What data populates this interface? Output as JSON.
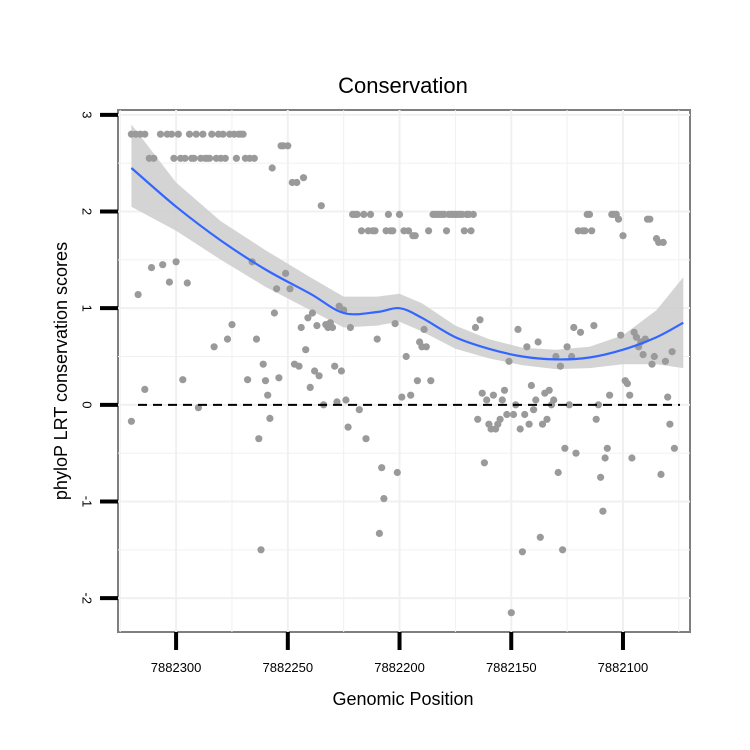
{
  "chart_data": {
    "type": "scatter",
    "title": "Conservation",
    "xlabel": "Genomic Position",
    "ylabel": "phyloP LRT conservation scores",
    "x_reversed": true,
    "xlim": [
      7882326,
      7882070
    ],
    "ylim": [
      -2.35,
      3.05
    ],
    "x_ticks": [
      7882300,
      7882250,
      7882200,
      7882150,
      7882100
    ],
    "x_tick_labels": [
      "7882300",
      "7882250",
      "7882200",
      "7882150",
      "7882100"
    ],
    "y_ticks": [
      3,
      2,
      1,
      0,
      -1,
      -2
    ],
    "y_tick_labels": [
      "3",
      "2",
      "1",
      "0",
      "-1",
      "-2"
    ],
    "reference_line": {
      "y": 0,
      "style": "dashed"
    },
    "colors": {
      "points": "#9a9a9a",
      "smooth": "#3366ff",
      "band": "#cccccc",
      "frame": "#7f7f7f",
      "grid": "#f0f0f0"
    },
    "points": [
      [
        7882320,
        -0.17
      ],
      [
        7882320,
        2.8
      ],
      [
        7882318,
        2.8
      ],
      [
        7882316,
        2.8
      ],
      [
        7882314,
        2.8
      ],
      [
        7882317,
        1.14
      ],
      [
        7882314,
        0.16
      ],
      [
        7882312,
        2.55
      ],
      [
        7882311,
        1.42
      ],
      [
        7882310,
        2.55
      ],
      [
        7882307,
        2.8
      ],
      [
        7882306,
        1.45
      ],
      [
        7882304,
        2.8
      ],
      [
        7882303,
        1.27
      ],
      [
        7882302,
        2.8
      ],
      [
        7882301,
        2.55
      ],
      [
        7882300,
        1.48
      ],
      [
        7882299,
        2.8
      ],
      [
        7882298,
        2.55
      ],
      [
        7882297,
        0.26
      ],
      [
        7882296,
        2.55
      ],
      [
        7882295,
        1.26
      ],
      [
        7882294,
        2.8
      ],
      [
        7882293,
        2.55
      ],
      [
        7882292,
        2.55
      ],
      [
        7882291,
        2.8
      ],
      [
        7882290,
        -0.03
      ],
      [
        7882289,
        2.55
      ],
      [
        7882288,
        2.8
      ],
      [
        7882287,
        2.55
      ],
      [
        7882286,
        2.55
      ],
      [
        7882285,
        2.55
      ],
      [
        7882284,
        2.8
      ],
      [
        7882283,
        0.6
      ],
      [
        7882282,
        2.55
      ],
      [
        7882281,
        2.8
      ],
      [
        7882280,
        2.55
      ],
      [
        7882279,
        2.8
      ],
      [
        7882278,
        2.55
      ],
      [
        7882277,
        0.68
      ],
      [
        7882276,
        2.8
      ],
      [
        7882275,
        0.83
      ],
      [
        7882274,
        2.8
      ],
      [
        7882273,
        2.55
      ],
      [
        7882272,
        2.8
      ],
      [
        7882271,
        2.8
      ],
      [
        7882270,
        2.8
      ],
      [
        7882269,
        2.55
      ],
      [
        7882268,
        0.26
      ],
      [
        7882267,
        2.55
      ],
      [
        7882266,
        1.48
      ],
      [
        7882265,
        2.55
      ],
      [
        7882264,
        0.68
      ],
      [
        7882263,
        -0.35
      ],
      [
        7882262,
        -1.5
      ],
      [
        7882261,
        0.42
      ],
      [
        7882260,
        0.25
      ],
      [
        7882259,
        0.1
      ],
      [
        7882258,
        -0.14
      ],
      [
        7882257,
        2.45
      ],
      [
        7882256,
        0.95
      ],
      [
        7882255,
        1.2
      ],
      [
        7882254,
        0.28
      ],
      [
        7882253,
        2.68
      ],
      [
        7882252,
        2.68
      ],
      [
        7882251,
        1.36
      ],
      [
        7882250,
        2.68
      ],
      [
        7882249,
        1.2
      ],
      [
        7882248,
        2.3
      ],
      [
        7882247,
        0.42
      ],
      [
        7882246,
        2.3
      ],
      [
        7882245,
        0.4
      ],
      [
        7882244,
        0.8
      ],
      [
        7882243,
        2.35
      ],
      [
        7882242,
        0.57
      ],
      [
        7882241,
        0.9
      ],
      [
        7882240,
        0.18
      ],
      [
        7882239,
        0.95
      ],
      [
        7882238,
        0.35
      ],
      [
        7882237,
        0.82
      ],
      [
        7882236,
        0.3
      ],
      [
        7882235,
        2.06
      ],
      [
        7882234,
        0.0
      ],
      [
        7882233,
        0.83
      ],
      [
        7882232,
        0.8
      ],
      [
        7882231,
        0.85
      ],
      [
        7882230,
        0.8
      ],
      [
        7882229,
        0.4
      ],
      [
        7882228,
        0.03
      ],
      [
        7882227,
        1.02
      ],
      [
        7882226,
        0.35
      ],
      [
        7882225,
        0.98
      ],
      [
        7882224,
        0.05
      ],
      [
        7882223,
        -0.23
      ],
      [
        7882222,
        0.8
      ],
      [
        7882221,
        1.97
      ],
      [
        7882220,
        1.97
      ],
      [
        7882219,
        1.97
      ],
      [
        7882218,
        -0.05
      ],
      [
        7882217,
        1.8
      ],
      [
        7882216,
        1.97
      ],
      [
        7882215,
        -0.35
      ],
      [
        7882214,
        1.8
      ],
      [
        7882213,
        1.97
      ],
      [
        7882212,
        1.8
      ],
      [
        7882211,
        1.8
      ],
      [
        7882210,
        0.68
      ],
      [
        7882209,
        -1.33
      ],
      [
        7882208,
        -0.65
      ],
      [
        7882207,
        -0.97
      ],
      [
        7882206,
        1.8
      ],
      [
        7882205,
        1.97
      ],
      [
        7882204,
        1.8
      ],
      [
        7882203,
        1.8
      ],
      [
        7882202,
        0.84
      ],
      [
        7882201,
        -0.7
      ],
      [
        7882200,
        1.97
      ],
      [
        7882199,
        0.08
      ],
      [
        7882198,
        1.8
      ],
      [
        7882197,
        0.5
      ],
      [
        7882196,
        1.8
      ],
      [
        7882195,
        0.1
      ],
      [
        7882194,
        1.75
      ],
      [
        7882193,
        1.75
      ],
      [
        7882192,
        0.25
      ],
      [
        7882191,
        0.65
      ],
      [
        7882190,
        0.6
      ],
      [
        7882189,
        0.78
      ],
      [
        7882188,
        0.6
      ],
      [
        7882187,
        1.8
      ],
      [
        7882186,
        0.25
      ],
      [
        7882185,
        1.97
      ],
      [
        7882184,
        1.97
      ],
      [
        7882183,
        1.97
      ],
      [
        7882182,
        1.97
      ],
      [
        7882181,
        1.97
      ],
      [
        7882180,
        1.97
      ],
      [
        7882179,
        1.8
      ],
      [
        7882178,
        1.97
      ],
      [
        7882177,
        1.97
      ],
      [
        7882176,
        1.97
      ],
      [
        7882175,
        1.97
      ],
      [
        7882174,
        1.97
      ],
      [
        7882173,
        1.97
      ],
      [
        7882172,
        1.97
      ],
      [
        7882171,
        1.8
      ],
      [
        7882170,
        1.97
      ],
      [
        7882169,
        1.97
      ],
      [
        7882168,
        1.8
      ],
      [
        7882167,
        1.97
      ],
      [
        7882166,
        0.8
      ],
      [
        7882165,
        -0.15
      ],
      [
        7882164,
        0.88
      ],
      [
        7882163,
        0.12
      ],
      [
        7882162,
        -0.6
      ],
      [
        7882161,
        0.05
      ],
      [
        7882160,
        -0.2
      ],
      [
        7882159,
        -0.25
      ],
      [
        7882158,
        0.1
      ],
      [
        7882157,
        -0.25
      ],
      [
        7882156,
        -0.2
      ],
      [
        7882155,
        -0.15
      ],
      [
        7882154,
        0.05
      ],
      [
        7882153,
        0.15
      ],
      [
        7882152,
        -0.1
      ],
      [
        7882151,
        0.45
      ],
      [
        7882150,
        -2.15
      ],
      [
        7882149,
        -0.1
      ],
      [
        7882148,
        0.0
      ],
      [
        7882147,
        0.78
      ],
      [
        7882146,
        -0.25
      ],
      [
        7882145,
        -1.52
      ],
      [
        7882144,
        -0.1
      ],
      [
        7882143,
        0.6
      ],
      [
        7882142,
        -0.2
      ],
      [
        7882141,
        0.2
      ],
      [
        7882140,
        -0.05
      ],
      [
        7882139,
        0.05
      ],
      [
        7882138,
        0.65
      ],
      [
        7882137,
        -1.37
      ],
      [
        7882136,
        -0.2
      ],
      [
        7882135,
        0.12
      ],
      [
        7882134,
        -0.15
      ],
      [
        7882133,
        0.15
      ],
      [
        7882132,
        0.0
      ],
      [
        7882131,
        0.05
      ],
      [
        7882130,
        0.5
      ],
      [
        7882129,
        -0.7
      ],
      [
        7882128,
        0.4
      ],
      [
        7882127,
        -1.5
      ],
      [
        7882126,
        -0.45
      ],
      [
        7882125,
        0.6
      ],
      [
        7882124,
        0.0
      ],
      [
        7882123,
        0.5
      ],
      [
        7882122,
        0.8
      ],
      [
        7882121,
        -0.5
      ],
      [
        7882120,
        1.8
      ],
      [
        7882119,
        0.75
      ],
      [
        7882118,
        1.8
      ],
      [
        7882117,
        1.8
      ],
      [
        7882116,
        1.97
      ],
      [
        7882115,
        1.97
      ],
      [
        7882114,
        1.8
      ],
      [
        7882113,
        0.82
      ],
      [
        7882112,
        -0.15
      ],
      [
        7882111,
        0.0
      ],
      [
        7882110,
        -0.75
      ],
      [
        7882109,
        -1.1
      ],
      [
        7882108,
        -0.55
      ],
      [
        7882107,
        -0.45
      ],
      [
        7882106,
        0.1
      ],
      [
        7882105,
        1.97
      ],
      [
        7882104,
        1.97
      ],
      [
        7882103,
        1.97
      ],
      [
        7882102,
        1.92
      ],
      [
        7882101,
        0.72
      ],
      [
        7882100,
        1.75
      ],
      [
        7882099,
        0.25
      ],
      [
        7882098,
        0.22
      ],
      [
        7882097,
        0.1
      ],
      [
        7882096,
        -0.55
      ],
      [
        7882095,
        0.75
      ],
      [
        7882094,
        0.7
      ],
      [
        7882093,
        0.6
      ],
      [
        7882092,
        0.65
      ],
      [
        7882091,
        0.52
      ],
      [
        7882090,
        0.68
      ],
      [
        7882089,
        1.92
      ],
      [
        7882088,
        1.92
      ],
      [
        7882087,
        0.42
      ],
      [
        7882086,
        0.5
      ],
      [
        7882085,
        1.72
      ],
      [
        7882084,
        1.68
      ],
      [
        7882083,
        -0.72
      ],
      [
        7882082,
        1.68
      ],
      [
        7882081,
        0.45
      ],
      [
        7882080,
        0.08
      ],
      [
        7882079,
        -0.2
      ],
      [
        7882078,
        0.55
      ],
      [
        7882077,
        -0.45
      ]
    ],
    "smooth_line": {
      "x": [
        7882320,
        7882300,
        7882280,
        7882260,
        7882240,
        7882225,
        7882210,
        7882200,
        7882190,
        7882175,
        7882160,
        7882145,
        7882130,
        7882115,
        7882100,
        7882085,
        7882073
      ],
      "y": [
        2.45,
        2.05,
        1.7,
        1.4,
        1.15,
        0.95,
        0.96,
        1.0,
        0.9,
        0.7,
        0.58,
        0.5,
        0.47,
        0.49,
        0.57,
        0.7,
        0.85
      ],
      "lower": [
        2.05,
        1.8,
        1.5,
        1.22,
        0.98,
        0.8,
        0.82,
        0.86,
        0.76,
        0.58,
        0.48,
        0.41,
        0.37,
        0.38,
        0.42,
        0.42,
        0.38
      ],
      "upper": [
        2.9,
        2.3,
        1.9,
        1.6,
        1.32,
        1.12,
        1.12,
        1.15,
        1.05,
        0.82,
        0.68,
        0.59,
        0.57,
        0.6,
        0.72,
        0.98,
        1.32
      ]
    }
  }
}
